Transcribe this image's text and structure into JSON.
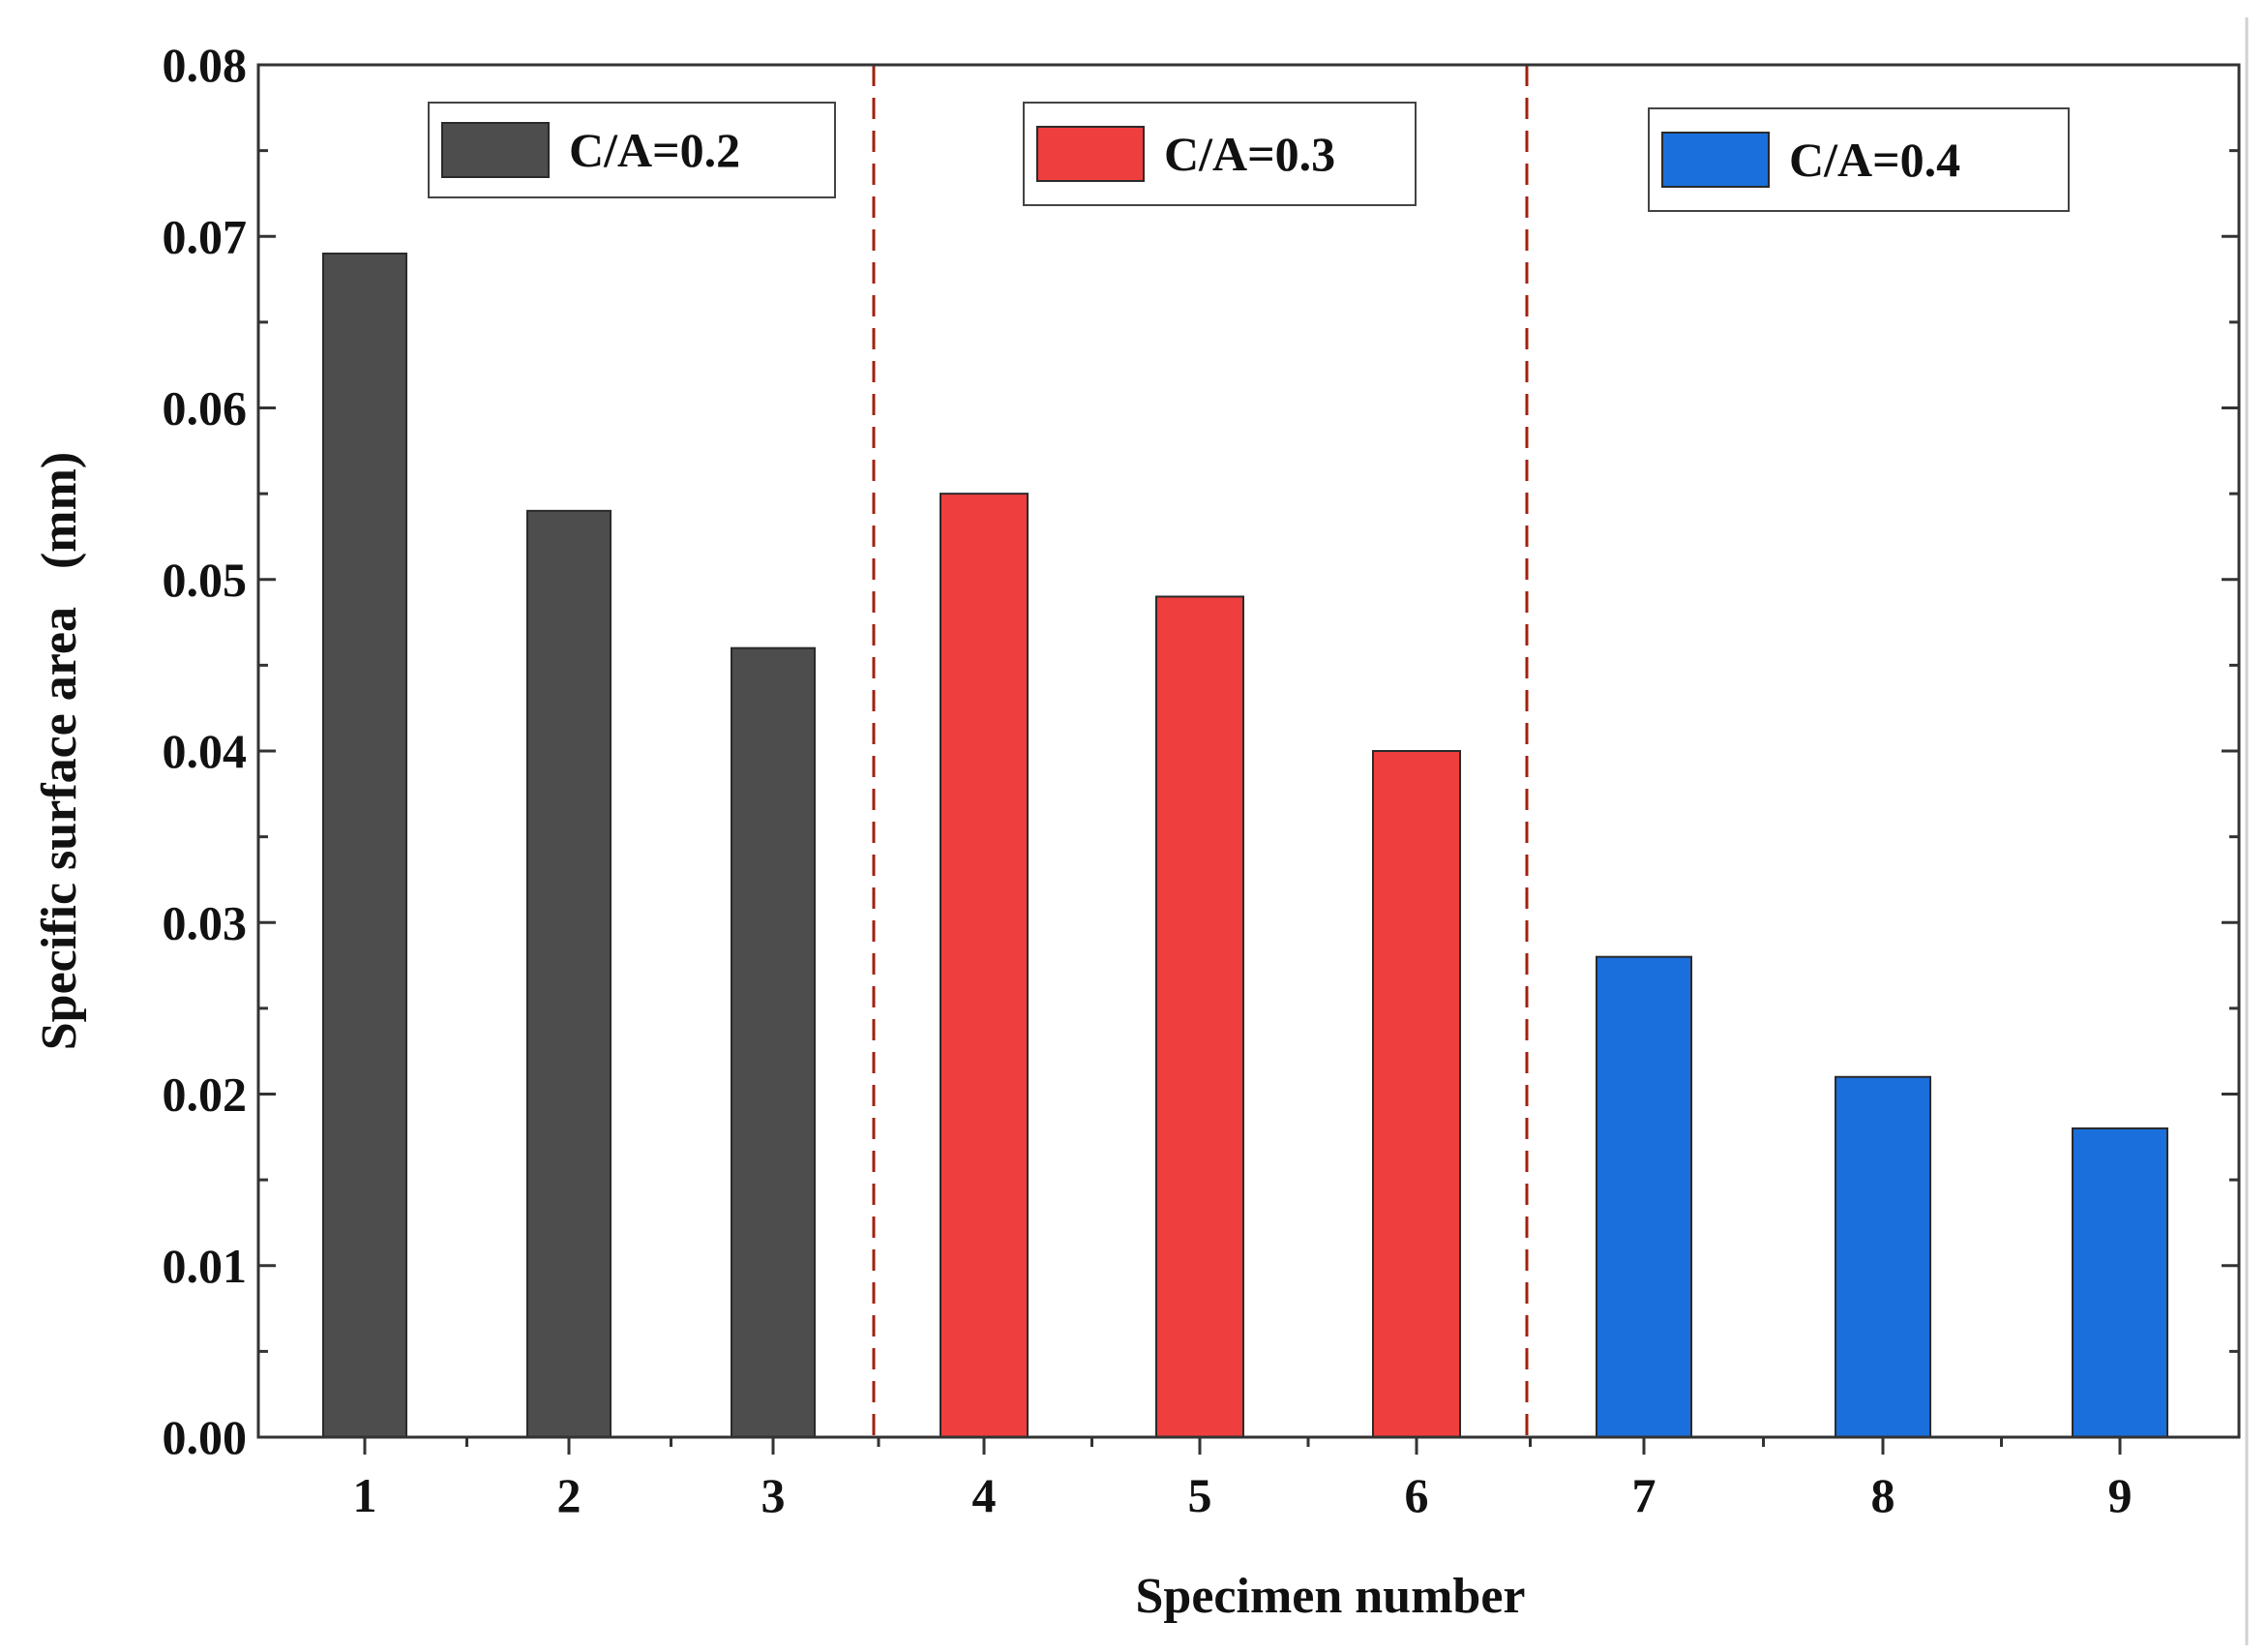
{
  "chart_data": {
    "type": "bar",
    "title": "",
    "xlabel": "Specimen number",
    "ylabel": "Specific surface area   (mm)",
    "categories": [
      "1",
      "2",
      "3",
      "4",
      "5",
      "6",
      "7",
      "8",
      "9"
    ],
    "ylim": [
      0,
      0.08
    ],
    "yticks": [
      "0.00",
      "0.01",
      "0.02",
      "0.03",
      "0.04",
      "0.05",
      "0.06",
      "0.07",
      "0.08"
    ],
    "series": [
      {
        "name": "C/A=0.2",
        "color": "#4d4d4d",
        "x": [
          1,
          2,
          3
        ],
        "values": [
          0.069,
          0.054,
          0.046
        ]
      },
      {
        "name": "C/A=0.3",
        "color": "#ef3e3e",
        "x": [
          4,
          5,
          6
        ],
        "values": [
          0.055,
          0.049,
          0.04
        ]
      },
      {
        "name": "C/A=0.4",
        "color": "#1a6fdc",
        "x": [
          7,
          8,
          9
        ],
        "values": [
          0.028,
          0.021,
          0.018
        ]
      }
    ],
    "group_dividers": [
      3.5,
      6.5
    ],
    "divider_color": "#a0200f",
    "grid": false
  }
}
